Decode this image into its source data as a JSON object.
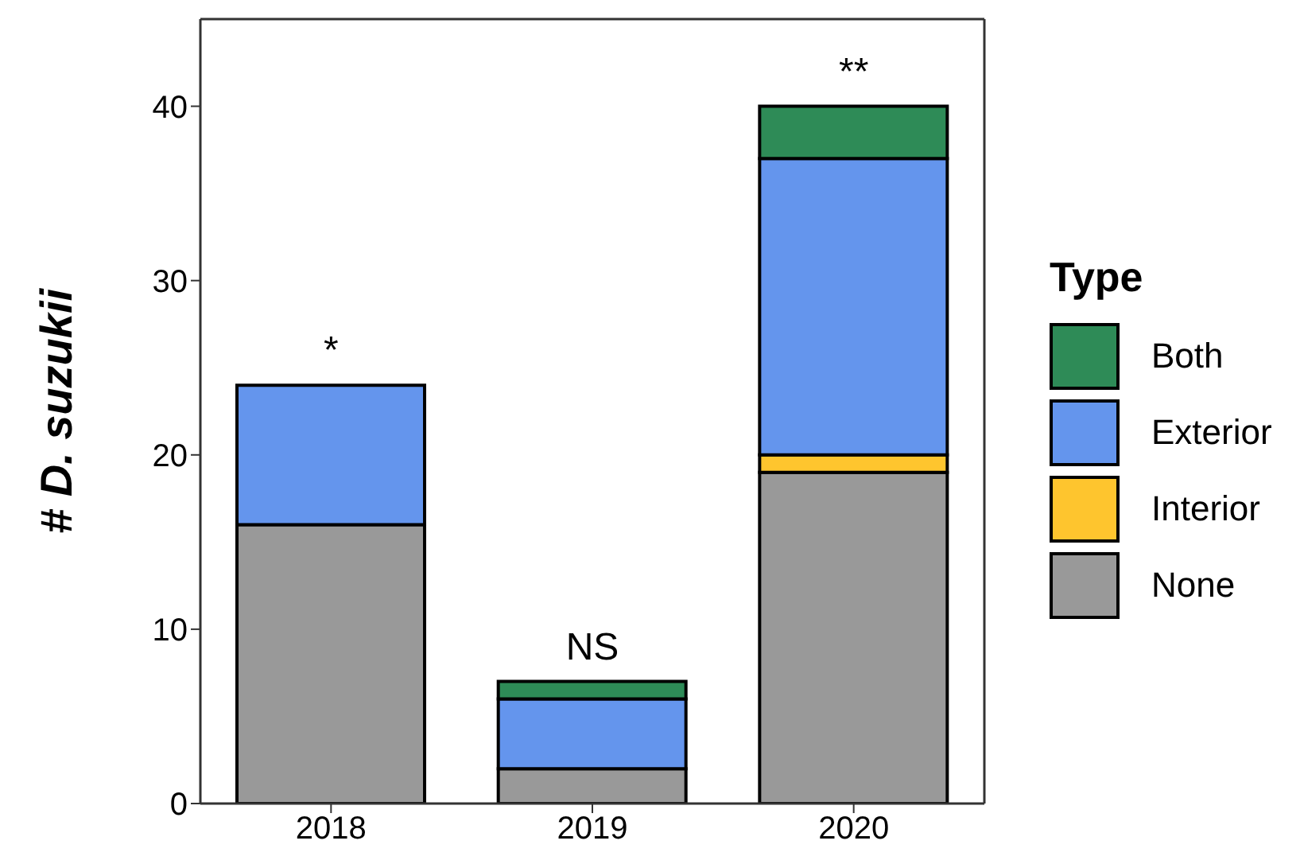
{
  "chart_data": {
    "type": "bar",
    "stacked": true,
    "categories": [
      "2018",
      "2019",
      "2020"
    ],
    "series": [
      {
        "name": "None",
        "color": "#999999",
        "values": [
          16,
          2,
          19
        ]
      },
      {
        "name": "Interior",
        "color": "#fec52e",
        "values": [
          0,
          0,
          1
        ]
      },
      {
        "name": "Exterior",
        "color": "#6495ed",
        "values": [
          8,
          4,
          17
        ]
      },
      {
        "name": "Both",
        "color": "#2e8b57",
        "values": [
          0,
          1,
          3
        ]
      }
    ],
    "ylabel": "# D. suzukii",
    "legend_title": "Type",
    "legend": "right",
    "ylim": [
      0,
      45
    ],
    "yticks": [
      0,
      10,
      20,
      30,
      40
    ],
    "annotations": [
      "*",
      "NS",
      "**"
    ]
  }
}
